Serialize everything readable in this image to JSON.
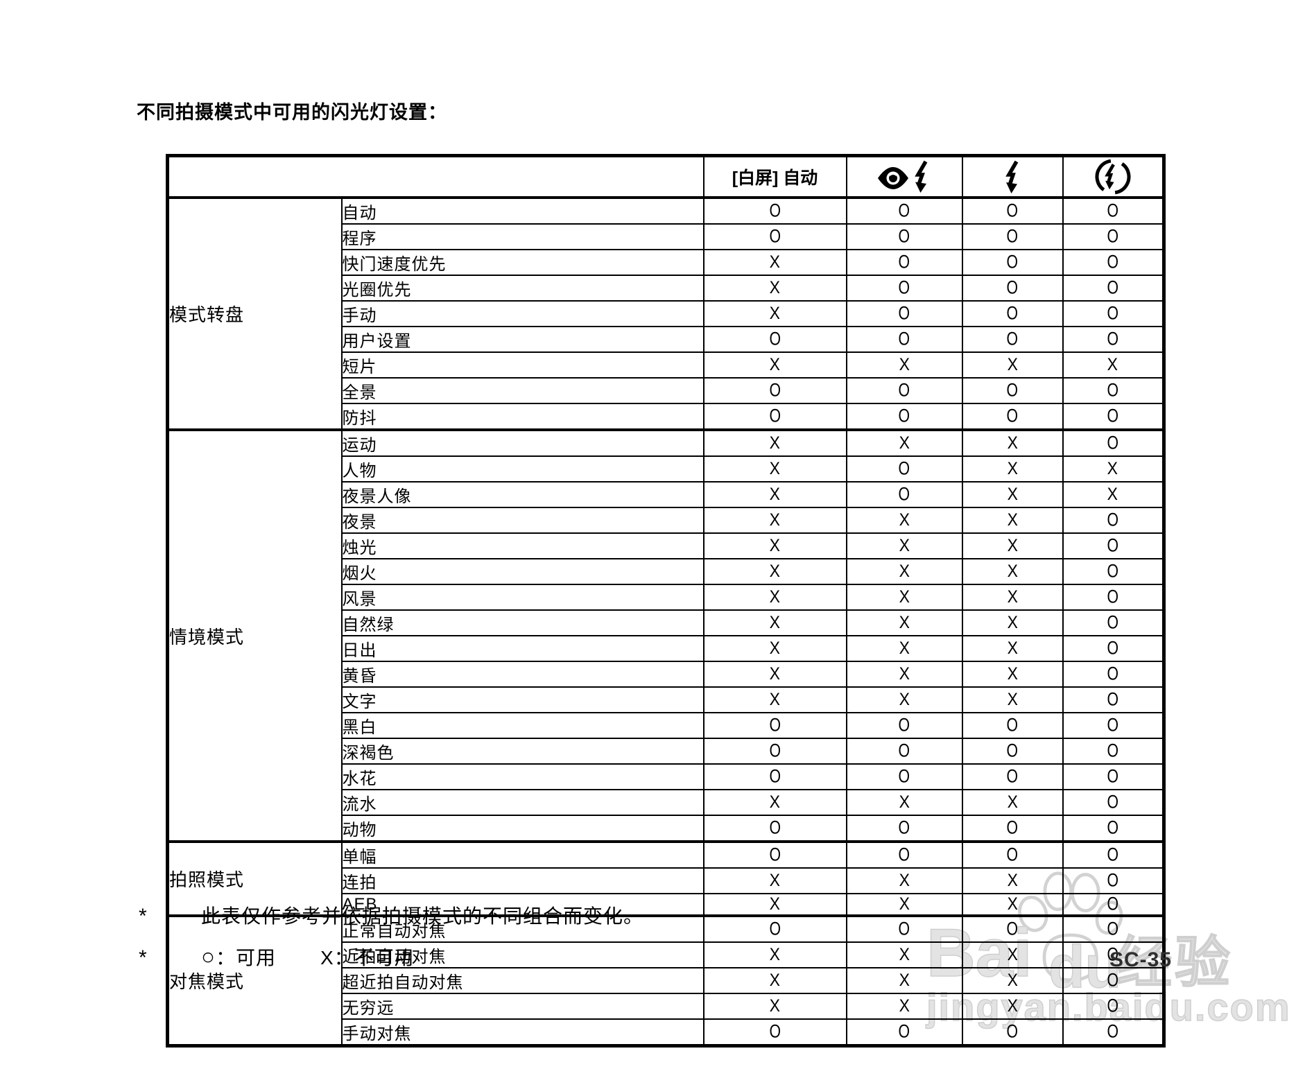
{
  "page": {
    "title": "不同拍摄模式中可用的闪光灯设置：",
    "page_number": "SC-35"
  },
  "table": {
    "header": {
      "corner": "",
      "col1_label": "[白屏] 自动",
      "col2_icon": "red-eye-flash-icon",
      "col3_icon": "flash-on-icon",
      "col4_icon": "flash-off-icon"
    },
    "groups": [
      {
        "label": "模式转盘",
        "rows": [
          {
            "label": "自动",
            "values": [
              "O",
              "O",
              "O",
              "O"
            ]
          },
          {
            "label": "程序",
            "values": [
              "O",
              "O",
              "O",
              "O"
            ]
          },
          {
            "label": "快门速度优先",
            "values": [
              "X",
              "O",
              "O",
              "O"
            ]
          },
          {
            "label": "光圈优先",
            "values": [
              "X",
              "O",
              "O",
              "O"
            ]
          },
          {
            "label": "手动",
            "values": [
              "X",
              "O",
              "O",
              "O"
            ]
          },
          {
            "label": "用户设置",
            "values": [
              "O",
              "O",
              "O",
              "O"
            ]
          },
          {
            "label": "短片",
            "values": [
              "X",
              "X",
              "X",
              "X"
            ]
          },
          {
            "label": "全景",
            "values": [
              "O",
              "O",
              "O",
              "O"
            ]
          },
          {
            "label": "防抖",
            "values": [
              "O",
              "O",
              "O",
              "O"
            ]
          }
        ]
      },
      {
        "label": "情境模式",
        "rows": [
          {
            "label": "运动",
            "values": [
              "X",
              "X",
              "X",
              "O"
            ]
          },
          {
            "label": "人物",
            "values": [
              "X",
              "O",
              "X",
              "X"
            ]
          },
          {
            "label": "夜景人像",
            "values": [
              "X",
              "O",
              "X",
              "X"
            ]
          },
          {
            "label": "夜景",
            "values": [
              "X",
              "X",
              "X",
              "O"
            ]
          },
          {
            "label": "烛光",
            "values": [
              "X",
              "X",
              "X",
              "O"
            ]
          },
          {
            "label": "烟火",
            "values": [
              "X",
              "X",
              "X",
              "O"
            ]
          },
          {
            "label": "风景",
            "values": [
              "X",
              "X",
              "X",
              "O"
            ]
          },
          {
            "label": "自然绿",
            "values": [
              "X",
              "X",
              "X",
              "O"
            ]
          },
          {
            "label": "日出",
            "values": [
              "X",
              "X",
              "X",
              "O"
            ]
          },
          {
            "label": "黄昏",
            "values": [
              "X",
              "X",
              "X",
              "O"
            ]
          },
          {
            "label": "文字",
            "values": [
              "X",
              "X",
              "X",
              "O"
            ]
          },
          {
            "label": "黑白",
            "values": [
              "O",
              "O",
              "O",
              "O"
            ]
          },
          {
            "label": "深褐色",
            "values": [
              "O",
              "O",
              "O",
              "O"
            ]
          },
          {
            "label": "水花",
            "values": [
              "O",
              "O",
              "O",
              "O"
            ]
          },
          {
            "label": "流水",
            "values": [
              "X",
              "X",
              "X",
              "O"
            ]
          },
          {
            "label": "动物",
            "values": [
              "O",
              "O",
              "O",
              "O"
            ]
          }
        ]
      },
      {
        "label": "拍照模式",
        "rows": [
          {
            "label": "单幅",
            "values": [
              "O",
              "O",
              "O",
              "O"
            ]
          },
          {
            "label": "连拍",
            "values": [
              "X",
              "X",
              "X",
              "O"
            ]
          },
          {
            "label": "AEB",
            "values": [
              "X",
              "X",
              "X",
              "O"
            ]
          }
        ]
      },
      {
        "label": "对焦模式",
        "rows": [
          {
            "label": "正常自动对焦",
            "values": [
              "O",
              "O",
              "O",
              "O"
            ]
          },
          {
            "label": "近拍自动对焦",
            "values": [
              "X",
              "X",
              "X",
              "O"
            ]
          },
          {
            "label": "超近拍自动对焦",
            "values": [
              "X",
              "X",
              "X",
              "O"
            ]
          },
          {
            "label": "无穷远",
            "values": [
              "X",
              "X",
              "X",
              "O"
            ]
          },
          {
            "label": "手动对焦",
            "values": [
              "O",
              "O",
              "O",
              "O"
            ]
          }
        ]
      }
    ]
  },
  "footnotes": [
    {
      "marker": "*",
      "text": "此表仅作参考并依据拍摄模式的不同组合而变化。"
    },
    {
      "marker": "*",
      "available_symbol": "○",
      "available_text": "：可用",
      "unavailable_symbol": "X",
      "unavailable_text": "：不可用"
    }
  ],
  "watermark": {
    "brand_part1": "Bai",
    "brand_part2": "du",
    "brand_suffix": "经验",
    "site": "jingyan.baidu.com",
    "color": "#d9d9d9"
  }
}
